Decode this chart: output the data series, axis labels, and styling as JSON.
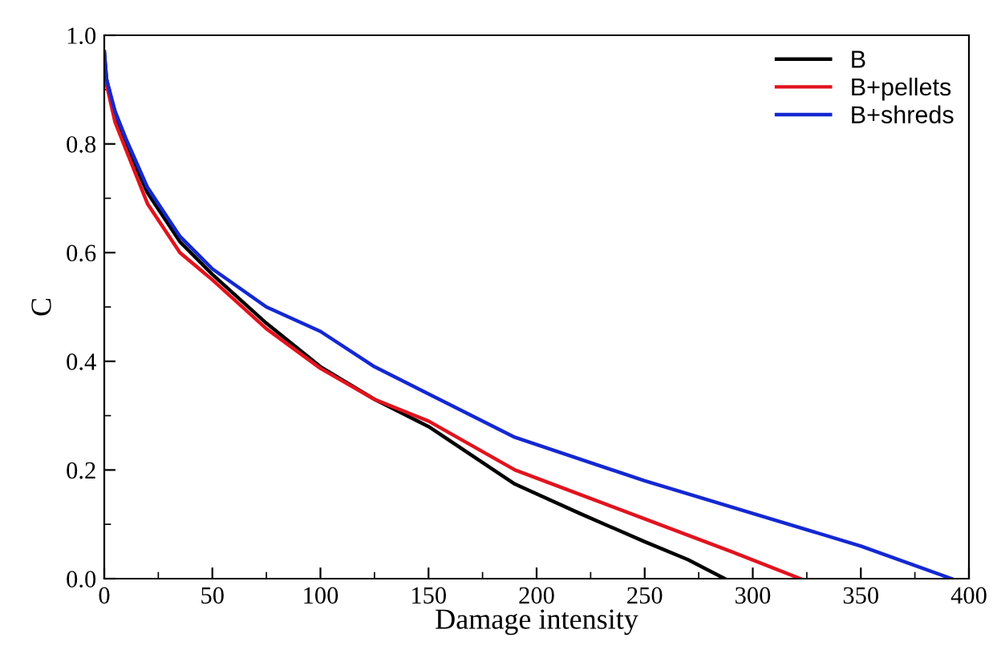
{
  "chart_data": {
    "type": "line",
    "xlabel": "Damage intensity",
    "ylabel": "C",
    "xlim": [
      0,
      400
    ],
    "xticks": [
      0,
      50,
      100,
      150,
      200,
      250,
      300,
      350,
      400
    ],
    "ylim": [
      0,
      1.0
    ],
    "yticks": [
      {
        "value": 0,
        "label": "0.0"
      },
      0.2,
      0.4,
      0.6,
      0.8,
      {
        "value": 1.0,
        "label": "1.0"
      }
    ],
    "grid": false,
    "legend": "top right",
    "marker": "none",
    "line_style": "solid",
    "series": [
      {
        "name": "B",
        "color": "#000000",
        "x": [
          0,
          1,
          5,
          10,
          20,
          35,
          50,
          75,
          100,
          125,
          150,
          190,
          220,
          250,
          270,
          287
        ],
        "values": [
          0.97,
          0.92,
          0.85,
          0.8,
          0.71,
          0.62,
          0.56,
          0.47,
          0.39,
          0.33,
          0.28,
          0.174,
          0.12,
          0.068,
          0.035,
          0
        ]
      },
      {
        "name": "B+pellets",
        "color": "#e0141e",
        "x": [
          1,
          5,
          10,
          20,
          35,
          50,
          75,
          100,
          125,
          150,
          190,
          220,
          250,
          290,
          322
        ],
        "values": [
          0.91,
          0.84,
          0.79,
          0.69,
          0.6,
          0.55,
          0.46,
          0.387,
          0.33,
          0.29,
          0.2,
          0.155,
          0.11,
          0.05,
          0
        ]
      },
      {
        "name": "B+shreds",
        "color": "#1428d2",
        "x": [
          0,
          1,
          5,
          10,
          20,
          35,
          50,
          75,
          100,
          125,
          150,
          190,
          250,
          300,
          350,
          392
        ],
        "values": [
          0.97,
          0.92,
          0.86,
          0.81,
          0.72,
          0.63,
          0.57,
          0.5,
          0.455,
          0.39,
          0.34,
          0.26,
          0.18,
          0.12,
          0.06,
          0
        ]
      }
    ]
  }
}
